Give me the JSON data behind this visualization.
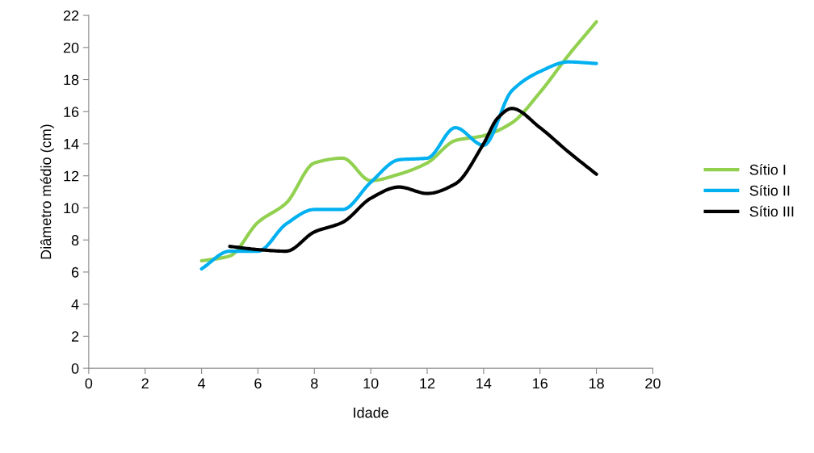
{
  "chart_data": {
    "type": "line",
    "xlabel": "Idade",
    "ylabel": "Diâmetro médio (cm)",
    "xlim": [
      0,
      20
    ],
    "xticks": [
      0,
      2,
      4,
      6,
      8,
      10,
      12,
      14,
      16,
      18,
      20
    ],
    "ylim": [
      0,
      22
    ],
    "yticks": [
      0,
      2,
      4,
      6,
      8,
      10,
      12,
      14,
      16,
      18,
      20,
      22
    ],
    "grid": false,
    "legend": "right",
    "marker": "none",
    "line_style": "solid",
    "series": [
      {
        "name": "Sítio I",
        "color": "#92d050",
        "x": [
          4,
          5,
          6,
          7,
          8,
          9,
          10,
          11,
          12,
          13,
          14,
          15,
          16,
          17,
          18
        ],
        "values": [
          6.7,
          7.0,
          9.1,
          10.3,
          12.8,
          13.1,
          11.7,
          12.1,
          12.8,
          14.2,
          14.5,
          15.3,
          17.2,
          19.5,
          21.6
        ]
      },
      {
        "name": "Sítio II",
        "color": "#00b0f0",
        "x": [
          4,
          5,
          6,
          7,
          8,
          9,
          10,
          11,
          12,
          13,
          14,
          15,
          16,
          17,
          18
        ],
        "values": [
          6.2,
          7.3,
          7.3,
          9.0,
          9.9,
          9.9,
          11.6,
          13.0,
          13.1,
          15.0,
          13.9,
          17.3,
          18.5,
          19.1,
          19.0
        ]
      },
      {
        "name": "Sítio III",
        "color": "#000000",
        "x": [
          5,
          6,
          7,
          8,
          9,
          10,
          11,
          12,
          13,
          14,
          14.5,
          15,
          16,
          17,
          18
        ],
        "values": [
          7.6,
          7.4,
          7.3,
          8.5,
          9.1,
          10.6,
          11.3,
          10.9,
          11.5,
          14.0,
          15.6,
          16.2,
          15.0,
          13.5,
          12.1
        ]
      }
    ]
  }
}
